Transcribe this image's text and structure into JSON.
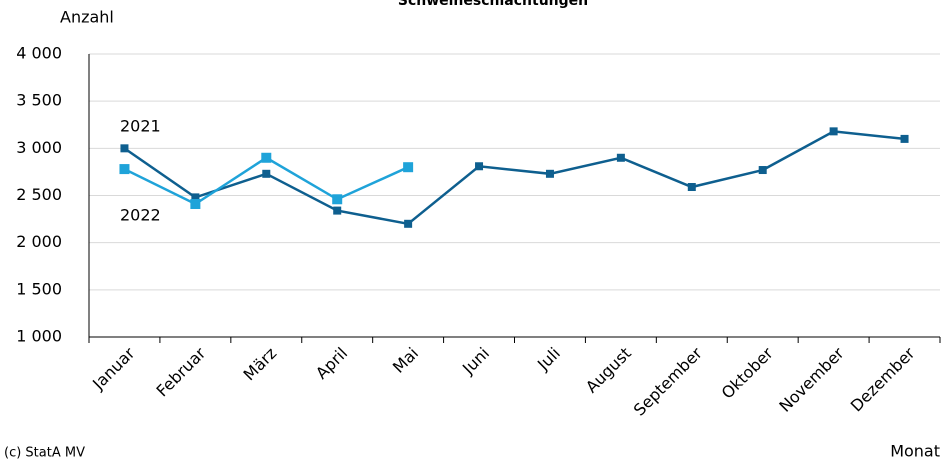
{
  "chart_data": {
    "type": "line",
    "title": "Schweineschlachtungen",
    "y_label": "Anzahl",
    "x_label": "Monat",
    "source": "(c) StatA MV",
    "categories": [
      "Januar",
      "Februar",
      "März",
      "April",
      "Mai",
      "Juni",
      "Juli",
      "August",
      "September",
      "Oktober",
      "November",
      "Dezember"
    ],
    "series": [
      {
        "name": "2021",
        "color": "#0e5f8f",
        "values": [
          3000,
          2480,
          2730,
          2340,
          2200,
          2810,
          2730,
          2900,
          2590,
          2770,
          3180,
          3100
        ]
      },
      {
        "name": "2022",
        "color": "#1fa3d9",
        "values": [
          2780,
          2410,
          2900,
          2460,
          2800,
          null,
          null,
          null,
          null,
          null,
          null,
          null
        ]
      }
    ],
    "ylim": [
      1000,
      4000
    ],
    "yticks": [
      {
        "value": 1000,
        "label": "1 000"
      },
      {
        "value": 1500,
        "label": "1 500"
      },
      {
        "value": 2000,
        "label": "2 000"
      },
      {
        "value": 2500,
        "label": "2 500"
      },
      {
        "value": 3000,
        "label": "3 000"
      },
      {
        "value": 3500,
        "label": "3 500"
      },
      {
        "value": 4000,
        "label": "4 000"
      }
    ],
    "grid": true
  }
}
